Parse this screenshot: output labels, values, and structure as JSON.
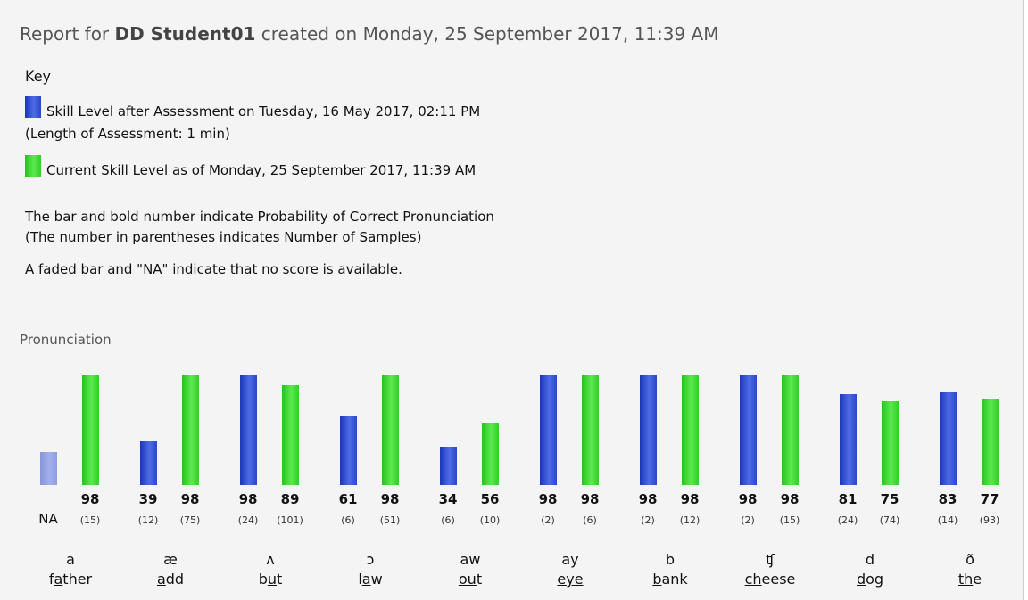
{
  "report": {
    "prefix": "Report for ",
    "student": "DD Student01",
    "suffix": " created on Monday, 25 September 2017, 11:39 AM"
  },
  "key": {
    "title": "Key",
    "assessment_label": "Skill Level after Assessment on Tuesday, 16 May 2017, 02:11 PM",
    "assessment_length": "(Length of Assessment: 1 min)",
    "current_label": "Current Skill Level as of Monday, 25 September 2017, 11:39 AM",
    "note1": "The bar and bold number indicate Probability of Correct Pronunciation",
    "note2": "(The number in parentheses indicates Number of Samples)",
    "note3": "A faded bar and \"NA\" indicate that no score is available."
  },
  "section": {
    "title": "Pronunciation"
  },
  "colors": {
    "assessment": "#2a46c9",
    "current": "#2fd028"
  },
  "chart_data": {
    "type": "bar",
    "ylim": [
      0,
      100
    ],
    "groups": [
      {
        "symbol": "a",
        "word": [
          "f",
          "a",
          "ther"
        ],
        "assessment": null,
        "assessment_text": "NA",
        "assessment_samples": "",
        "current": 98,
        "current_samples": "(15)"
      },
      {
        "symbol": "æ",
        "word": [
          "",
          "a",
          "dd"
        ],
        "assessment": 39,
        "assessment_text": "39",
        "assessment_samples": "(12)",
        "current": 98,
        "current_samples": "(75)"
      },
      {
        "symbol": "ʌ",
        "word": [
          "b",
          "u",
          "t"
        ],
        "assessment": 98,
        "assessment_text": "98",
        "assessment_samples": "(24)",
        "current": 89,
        "current_samples": "(101)"
      },
      {
        "symbol": "ɔ",
        "word": [
          "l",
          "a",
          "w"
        ],
        "assessment": 61,
        "assessment_text": "61",
        "assessment_samples": "(6)",
        "current": 98,
        "current_samples": "(51)"
      },
      {
        "symbol": "aw",
        "word": [
          "",
          "ou",
          "t"
        ],
        "assessment": 34,
        "assessment_text": "34",
        "assessment_samples": "(6)",
        "current": 56,
        "current_samples": "(10)"
      },
      {
        "symbol": "ay",
        "word": [
          "",
          "eye",
          ""
        ],
        "assessment": 98,
        "assessment_text": "98",
        "assessment_samples": "(2)",
        "current": 98,
        "current_samples": "(6)"
      },
      {
        "symbol": "b",
        "word": [
          "",
          "b",
          "ank"
        ],
        "assessment": 98,
        "assessment_text": "98",
        "assessment_samples": "(2)",
        "current": 98,
        "current_samples": "(12)"
      },
      {
        "symbol": "ʧ",
        "word": [
          "",
          "ch",
          "eese"
        ],
        "assessment": 98,
        "assessment_text": "98",
        "assessment_samples": "(2)",
        "current": 98,
        "current_samples": "(15)"
      },
      {
        "symbol": "d",
        "word": [
          "",
          "d",
          "og"
        ],
        "assessment": 81,
        "assessment_text": "81",
        "assessment_samples": "(24)",
        "current": 75,
        "current_samples": "(74)"
      },
      {
        "symbol": "ð",
        "word": [
          "",
          "th",
          "e"
        ],
        "assessment": 83,
        "assessment_text": "83",
        "assessment_samples": "(14)",
        "current": 77,
        "current_samples": "(93)"
      }
    ]
  }
}
